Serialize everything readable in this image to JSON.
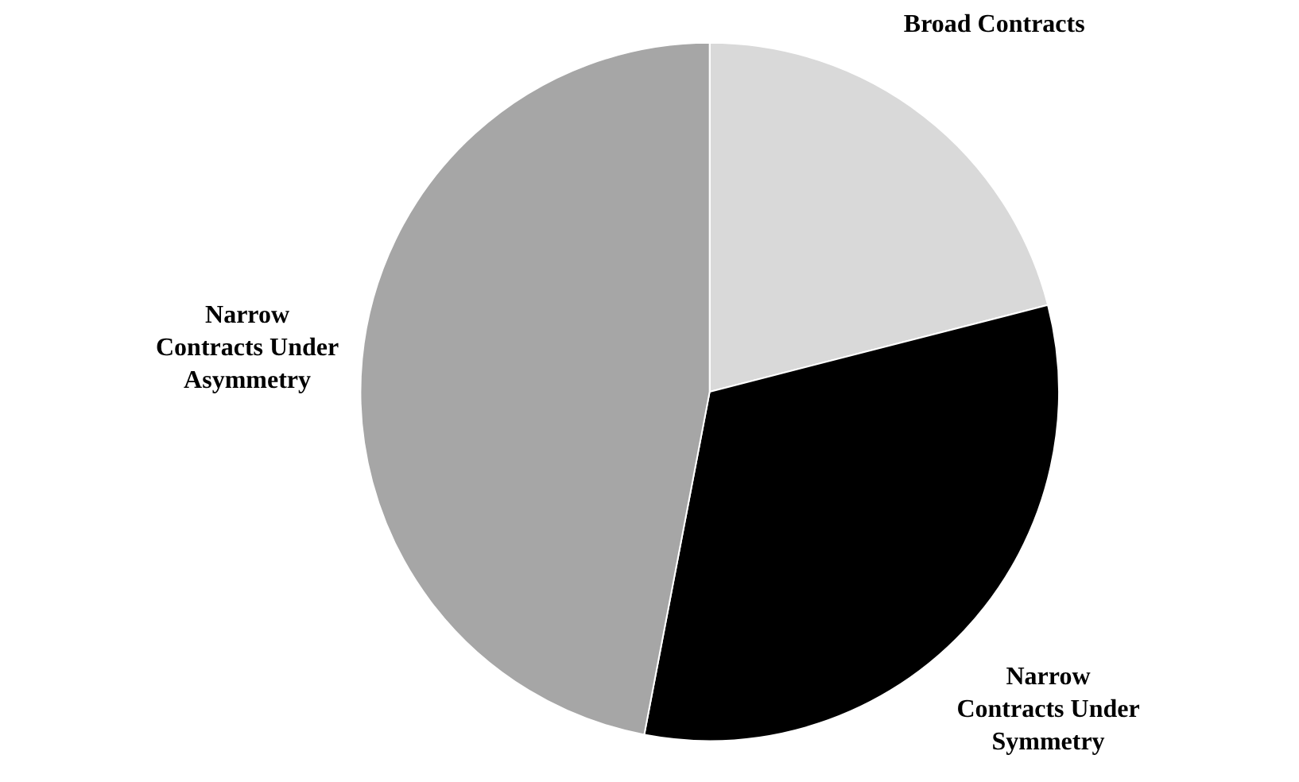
{
  "chart_data": {
    "type": "pie",
    "categories": [
      "Broad Contracts",
      "Narrow Contracts Under Symmetry",
      "Narrow Contracts Under Asymmetry"
    ],
    "values": [
      21,
      32,
      47
    ],
    "colors": [
      "#d9d9d9",
      "#000000",
      "#a6a6a6"
    ]
  }
}
